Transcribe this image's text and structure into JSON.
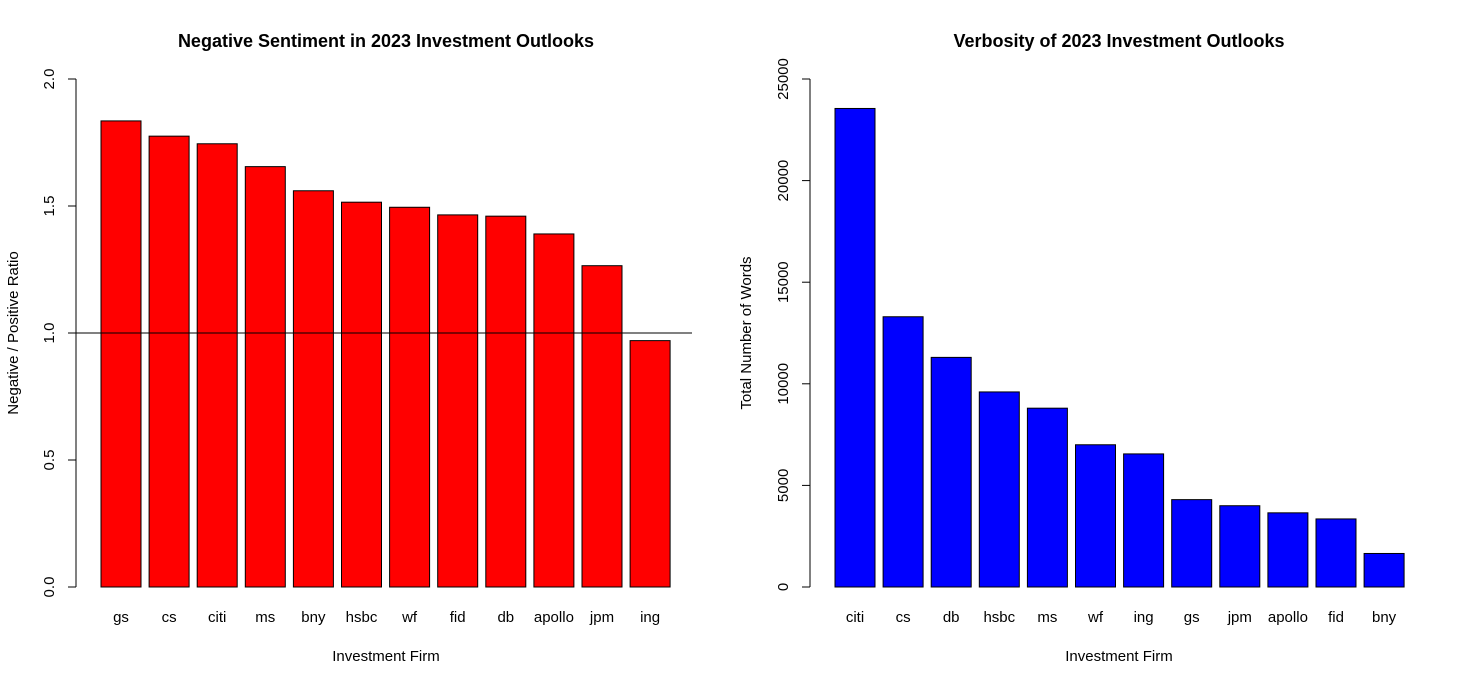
{
  "chart_data": [
    {
      "type": "bar",
      "title": "Negative Sentiment in 2023 Investment Outlooks",
      "xlabel": "Investment Firm",
      "ylabel": "Negative / Positive Ratio",
      "categories": [
        "gs",
        "cs",
        "citi",
        "ms",
        "bny",
        "hsbc",
        "wf",
        "fid",
        "db",
        "apollo",
        "jpm",
        "ing"
      ],
      "values": [
        1.835,
        1.775,
        1.745,
        1.655,
        1.56,
        1.515,
        1.495,
        1.465,
        1.46,
        1.39,
        1.265,
        0.97
      ],
      "ylim": [
        0,
        2
      ],
      "yticks": [
        "0.0",
        "0.5",
        "1.0",
        "1.5",
        "2.0"
      ],
      "ytick_values": [
        0,
        0.5,
        1,
        1.5,
        2
      ],
      "reference_line": 1.0,
      "bar_color": "#ff0000",
      "grid": false
    },
    {
      "type": "bar",
      "title": "Verbosity of 2023 Investment Outlooks",
      "xlabel": "Investment Firm",
      "ylabel": "Total Number of Words",
      "categories": [
        "citi",
        "cs",
        "db",
        "hsbc",
        "ms",
        "wf",
        "ing",
        "gs",
        "jpm",
        "apollo",
        "fid",
        "bny"
      ],
      "values": [
        23550,
        13300,
        11300,
        9600,
        8800,
        7000,
        6550,
        4300,
        4000,
        3650,
        3350,
        1650
      ],
      "ylim": [
        0,
        25000
      ],
      "yticks": [
        "0",
        "5000",
        "10000",
        "15000",
        "20000",
        "25000"
      ],
      "ytick_values": [
        0,
        5000,
        10000,
        15000,
        20000,
        25000
      ],
      "bar_color": "#0000ff",
      "grid": false
    }
  ]
}
